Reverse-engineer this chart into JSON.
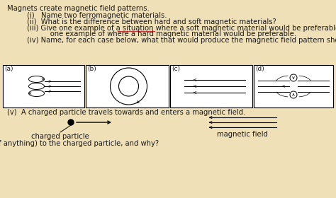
{
  "title_text": "Magnets create magnetic field patterns.",
  "q1": "(i)   Name two ferromagnetic materials.",
  "q2": "(ii)  What is the difference between hard and soft magnetic materials?",
  "q3a": "(iii) Give one example of a situation where a soft magnetic material would be preferable and",
  "q3b": "      one example of where a hard magnetic material would be preferable.",
  "q4": "(iv) Name, for each case below, what that would produce the magnetic field pattern shown.",
  "q5": "(v)  A charged particle travels towards and enters a magnetic field.",
  "box_labels": [
    "(a)",
    "(b)",
    "(c)",
    "(d)"
  ],
  "label_charged": "charged particle",
  "label_magnetic": "magnetic field",
  "question_bottom": "What happens (if anything) to the charged particle, and why?",
  "bg_color": "#f0e0b8",
  "text_color": "#1a1a1a",
  "underline_color": "#cc3333",
  "box_color": "#000000",
  "white": "#ffffff"
}
